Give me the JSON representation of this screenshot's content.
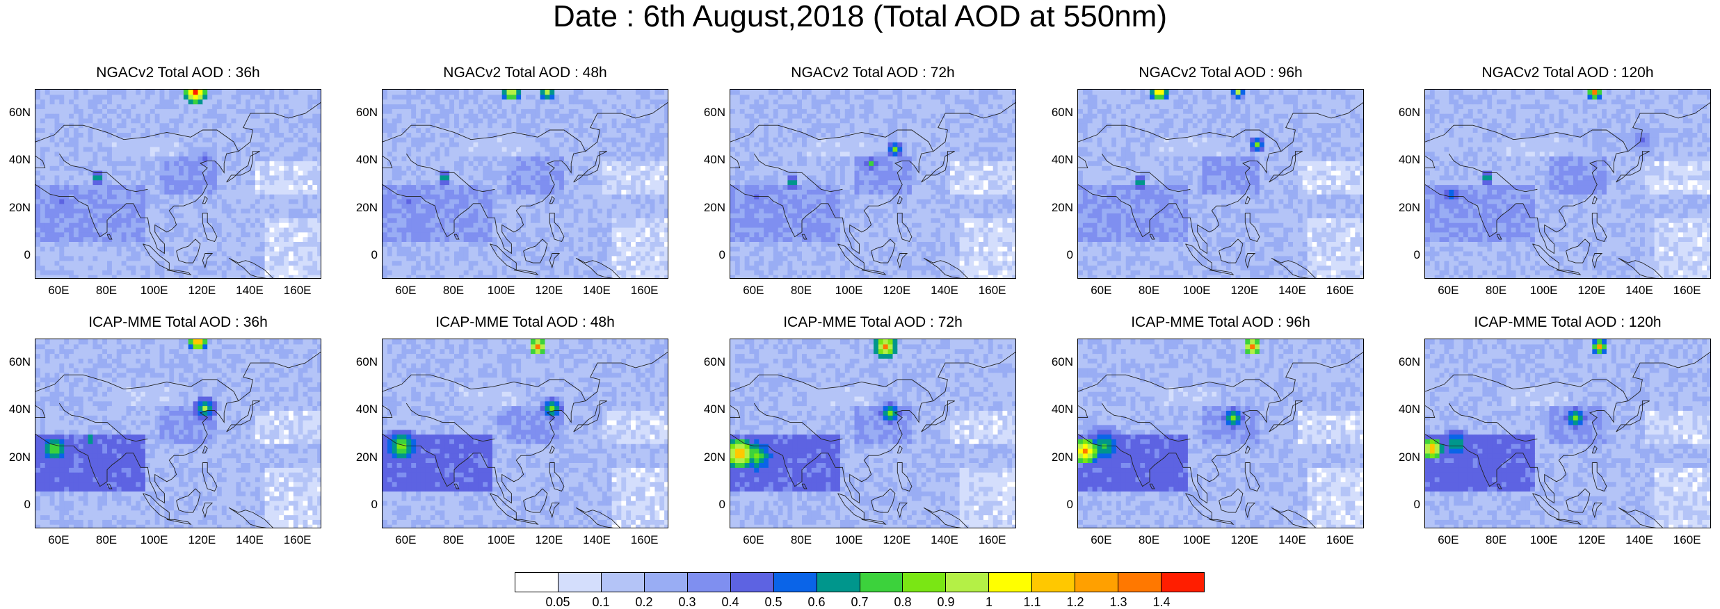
{
  "page_title": "Date : 6th August,2018 (Total AOD at 550nm)",
  "panels": [
    {
      "title": "NGACv2 Total AOD : 36h",
      "model": "NGACv2"
    },
    {
      "title": "NGACv2 Total AOD : 48h",
      "model": "NGACv2"
    },
    {
      "title": "NGACv2 Total AOD : 72h",
      "model": "NGACv2"
    },
    {
      "title": "NGACv2 Total AOD : 96h",
      "model": "NGACv2"
    },
    {
      "title": "NGACv2 Total AOD : 120h",
      "model": "NGACv2"
    },
    {
      "title": "ICAP-MME Total AOD : 36h",
      "model": "ICAP-MME"
    },
    {
      "title": "ICAP-MME Total AOD : 48h",
      "model": "ICAP-MME"
    },
    {
      "title": "ICAP-MME Total AOD : 72h",
      "model": "ICAP-MME"
    },
    {
      "title": "ICAP-MME Total AOD : 96h",
      "model": "ICAP-MME"
    },
    {
      "title": "ICAP-MME Total AOD : 120h",
      "model": "ICAP-MME"
    }
  ],
  "lat_ticks": [
    "60N",
    "40N",
    "20N",
    "0"
  ],
  "lon_ticks": [
    "60E",
    "80E",
    "100E",
    "120E",
    "140E",
    "160E"
  ],
  "colorbar": {
    "labels": [
      "0.05",
      "0.1",
      "0.2",
      "0.3",
      "0.4",
      "0.5",
      "0.6",
      "0.7",
      "0.8",
      "0.9",
      "1",
      "1.1",
      "1.2",
      "1.3",
      "1.4"
    ],
    "colors": [
      "#ffffff",
      "#d4defc",
      "#b4c4f7",
      "#99adf4",
      "#7f8ff0",
      "#5d63e2",
      "#0a64e8",
      "#00968c",
      "#3cd23c",
      "#7ae614",
      "#b4f046",
      "#ffff00",
      "#ffc800",
      "#ffa000",
      "#ff7800",
      "#ff1e00"
    ]
  }
}
